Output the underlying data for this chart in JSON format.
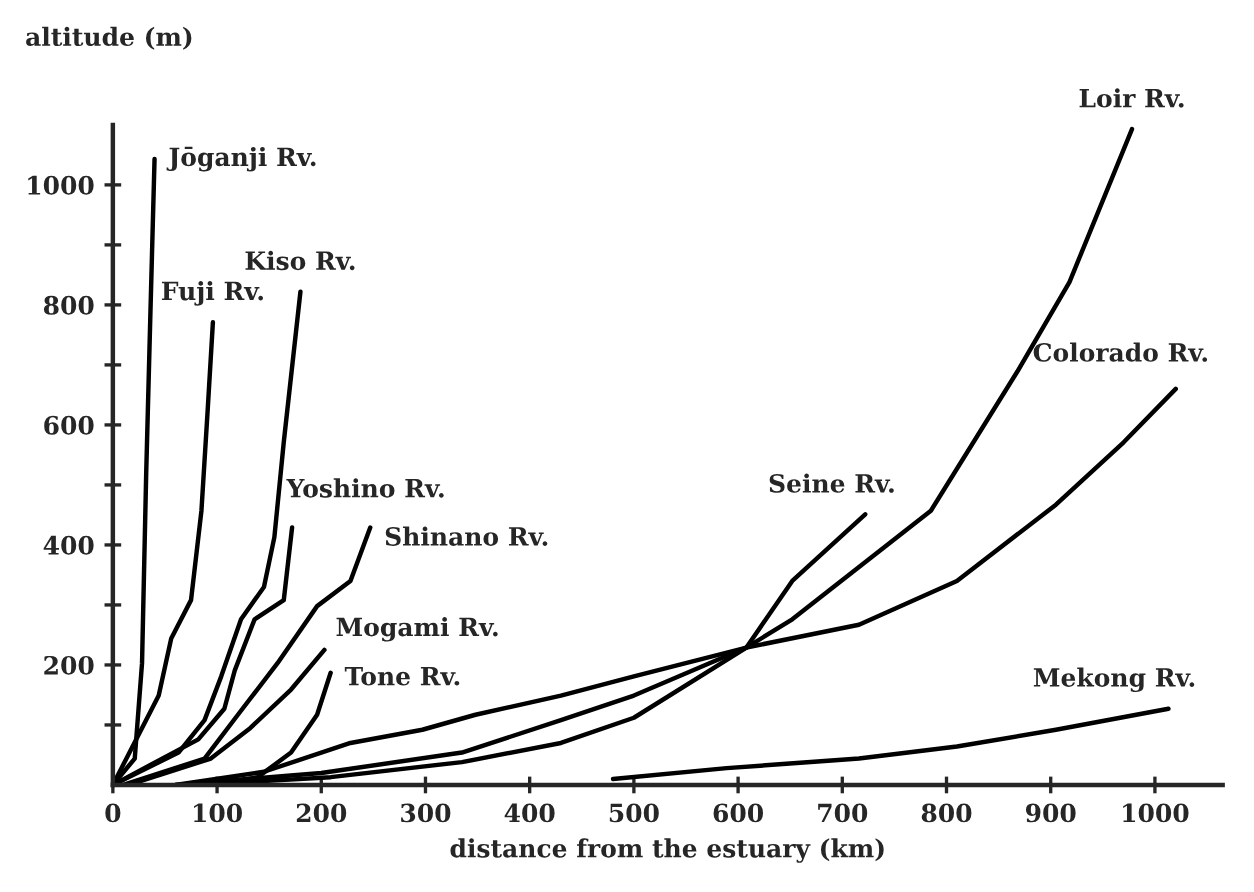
{
  "chart_data": {
    "type": "line",
    "xlabel": "distance from the estuary (km)",
    "ylabel": "altitude (m)",
    "xlim": [
      0,
      1065
    ],
    "ylim": [
      0,
      1100
    ],
    "xticks": [
      0,
      100,
      200,
      300,
      400,
      500,
      600,
      700,
      800,
      900,
      1000
    ],
    "yticks": [
      {
        "value": 100,
        "label": null
      },
      200,
      {
        "value": 300,
        "label": null
      },
      400,
      {
        "value": 500,
        "label": null
      },
      600,
      {
        "value": 700,
        "label": null
      },
      800,
      {
        "value": 900,
        "label": null
      },
      1000
    ],
    "grid": false,
    "legend": false,
    "marker": "none",
    "line_style": "solid",
    "series": [
      {
        "name": "Jōganji Rv.",
        "color": "#000000",
        "x": [
          0,
          21,
          28,
          32,
          36,
          40
        ],
        "values": [
          0,
          44,
          203,
          520,
          784,
          1043
        ]
      },
      {
        "name": "Fuji Rv.",
        "color": "#000000",
        "x": [
          0,
          44,
          56,
          75,
          85,
          91,
          96
        ],
        "values": [
          0,
          149,
          244,
          308,
          457,
          625,
          771
        ]
      },
      {
        "name": "Kiso Rv.",
        "color": "#000000",
        "x": [
          0,
          63,
          88,
          104,
          123,
          145,
          155,
          164,
          180
        ],
        "values": [
          0,
          54,
          108,
          181,
          276,
          330,
          413,
          571,
          822
        ]
      },
      {
        "name": "Yoshino Rv.",
        "color": "#000000",
        "x": [
          0,
          82,
          107,
          117,
          136,
          164,
          172
        ],
        "values": [
          0,
          76,
          127,
          191,
          276,
          308,
          429
        ]
      },
      {
        "name": "Shinano Rv.",
        "color": "#000000",
        "x": [
          10,
          88,
          120,
          158,
          196,
          228,
          247
        ],
        "values": [
          0,
          44,
          117,
          203,
          298,
          340,
          429
        ]
      },
      {
        "name": "Mogami Rv.",
        "color": "#000000",
        "x": [
          15,
          94,
          132,
          171,
          203
        ],
        "values": [
          0,
          44,
          95,
          159,
          225
        ]
      },
      {
        "name": "Tone Rv.",
        "color": "#000000",
        "x": [
          100,
          139,
          171,
          196,
          209
        ],
        "values": [
          0,
          13,
          54,
          117,
          187
        ]
      },
      {
        "name": "Colorado Rv.",
        "color": "#000000",
        "x": [
          60,
          145,
          228,
          297,
          348,
          430,
          500,
          608,
          716,
          810,
          905,
          970,
          1020
        ],
        "values": [
          0,
          22,
          70,
          92,
          117,
          149,
          181,
          229,
          267,
          340,
          467,
          571,
          660
        ]
      },
      {
        "name": "Loir Rv.",
        "color": "#000000",
        "x": [
          60,
          200,
          335,
          430,
          500,
          608,
          652,
          785,
          868,
          918,
          978
        ],
        "values": [
          0,
          20,
          54,
          108,
          149,
          229,
          276,
          457,
          689,
          838,
          1093
        ]
      },
      {
        "name": "Seine Rv.",
        "color": "#000000",
        "x": [
          80,
          209,
          335,
          430,
          500,
          608,
          652,
          722
        ],
        "values": [
          0,
          13,
          38,
          70,
          112,
          229,
          340,
          451
        ]
      },
      {
        "name": "Mekong Rv.",
        "color": "#000000",
        "x": [
          480,
          589,
          716,
          810,
          905,
          1013
        ],
        "values": [
          10,
          28,
          44,
          64,
          92,
          127
        ]
      }
    ]
  }
}
